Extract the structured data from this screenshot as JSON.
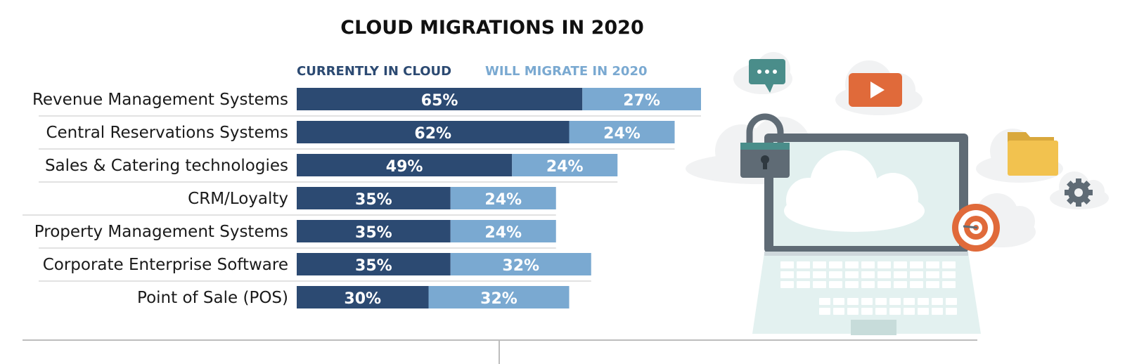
{
  "chart_data": {
    "type": "bar",
    "orientation": "horizontal",
    "stacked": true,
    "title": "CLOUD MIGRATIONS IN 2020",
    "categories": [
      "Revenue Management Systems",
      "Central Reservations Systems",
      "Sales & Catering technologies",
      "CRM/Loyalty",
      "Property Management Systems",
      "Corporate Enterprise Software",
      "Point of Sale (POS)"
    ],
    "series": [
      {
        "name": "CURRENTLY IN CLOUD",
        "values": [
          65,
          62,
          49,
          35,
          35,
          35,
          30
        ],
        "labels": [
          "65%",
          "62%",
          "49%",
          "35%",
          "35%",
          "35%",
          "30%"
        ]
      },
      {
        "name": "WILL MIGRATE IN 2020",
        "values": [
          27,
          24,
          24,
          24,
          24,
          32,
          32
        ],
        "labels": [
          "27%",
          "24%",
          "24%",
          "24%",
          "24%",
          "32%",
          "32%"
        ]
      }
    ],
    "unit": "%",
    "xlabel": "",
    "ylabel": "",
    "grid": false,
    "legend_position": "top"
  },
  "colors": {
    "currently": "#2c4a72",
    "migrate": "#7aa9d1",
    "title": "#111111",
    "label": "#1a1a1a",
    "divider": "#d9d9d9"
  },
  "illustration": {
    "icons": [
      "chat-icon",
      "play-icon",
      "lock-icon",
      "folder-icon",
      "gear-icon",
      "target-icon",
      "laptop-icon",
      "cloud-icon"
    ]
  }
}
